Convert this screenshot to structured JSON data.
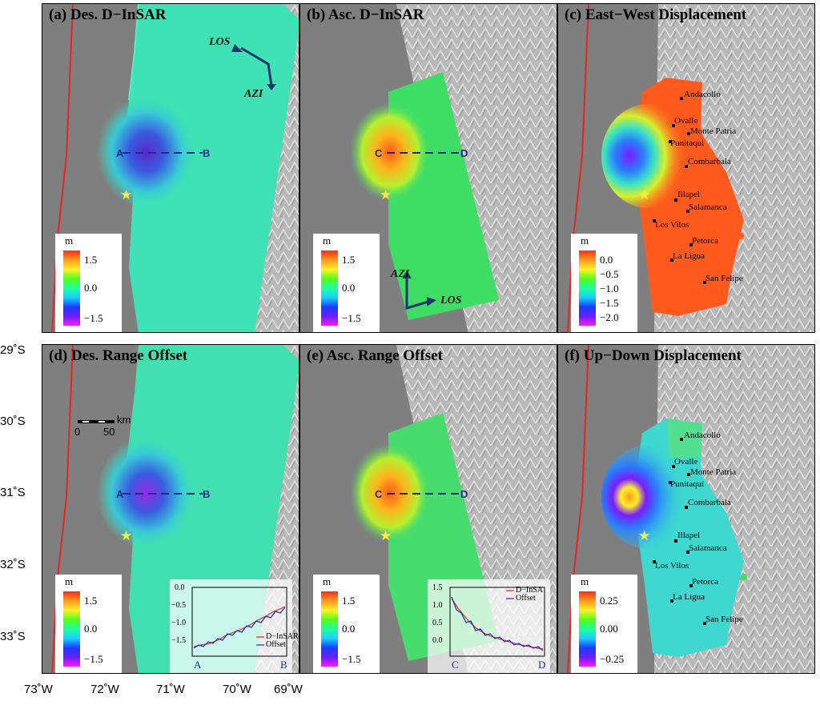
{
  "panels": {
    "a": {
      "title": "(a) Des. D−InSAR",
      "profile_start": "A",
      "profile_end": "B",
      "colorbar": {
        "unit": "m",
        "ticks": [
          "1.5",
          "0.0",
          "−1.5"
        ]
      },
      "arrows": {
        "los": "LOS",
        "azi": "AZI"
      }
    },
    "b": {
      "title": "(b) Asc. D−InSAR",
      "profile_start": "C",
      "profile_end": "D",
      "colorbar": {
        "unit": "m",
        "ticks": [
          "1.5",
          "0.0",
          "−1.5"
        ]
      },
      "arrows": {
        "los": "LOS",
        "azi": "AZI"
      }
    },
    "c": {
      "title": "(c) East−West Displacement",
      "colorbar": {
        "unit": "m",
        "ticks": [
          "0.0",
          "−0.5",
          "−1.0",
          "−1.5",
          "−2.0"
        ]
      }
    },
    "d": {
      "title": "(d) Des. Range Offset",
      "profile_start": "A",
      "profile_end": "B",
      "colorbar": {
        "unit": "m",
        "ticks": [
          "1.5",
          "0.0",
          "−1.5"
        ]
      },
      "scale_bar": {
        "label_unit": "km",
        "start": "0",
        "end": "50"
      },
      "inset": {
        "yticks": [
          "0.0",
          "−0.5",
          "−1.0",
          "−1.5"
        ],
        "xstart": "A",
        "xend": "B",
        "legend": [
          "D−InSAR",
          "Offset"
        ]
      }
    },
    "e": {
      "title": "(e) Asc. Range Offset",
      "profile_start": "C",
      "profile_end": "D",
      "colorbar": {
        "unit": "m",
        "ticks": [
          "1.5",
          "0.0",
          "−1.5"
        ]
      },
      "inset": {
        "yticks": [
          "1.5",
          "1.0",
          "0.5",
          "0.0"
        ],
        "xstart": "C",
        "xend": "D",
        "legend": [
          "D−InSA",
          "Offset"
        ]
      }
    },
    "f": {
      "title": "(f) Up−Down Displacement",
      "colorbar": {
        "unit": "m",
        "ticks": [
          "0.25",
          "0.00",
          "−0.25"
        ]
      }
    }
  },
  "cities": [
    "Andacollo",
    "Ovalle",
    "Monte Patria",
    "Punitaqui",
    "Combarbala",
    "Illapel",
    "Salamanca",
    "Los Vilos",
    "Petorca",
    "La Ligua",
    "San Felipe"
  ],
  "axes": {
    "latitudes": [
      "29˚S",
      "30˚S",
      "31˚S",
      "32˚S",
      "33˚S"
    ],
    "longitudes": [
      "73˚W",
      "72˚W",
      "71˚W",
      "70˚W",
      "69˚W"
    ]
  },
  "colors": {
    "trench": "#e8231c",
    "ocean": "#7f7f7f",
    "profile_line": "#1c2e8c",
    "epicenter_star": "#ffe94a"
  }
}
